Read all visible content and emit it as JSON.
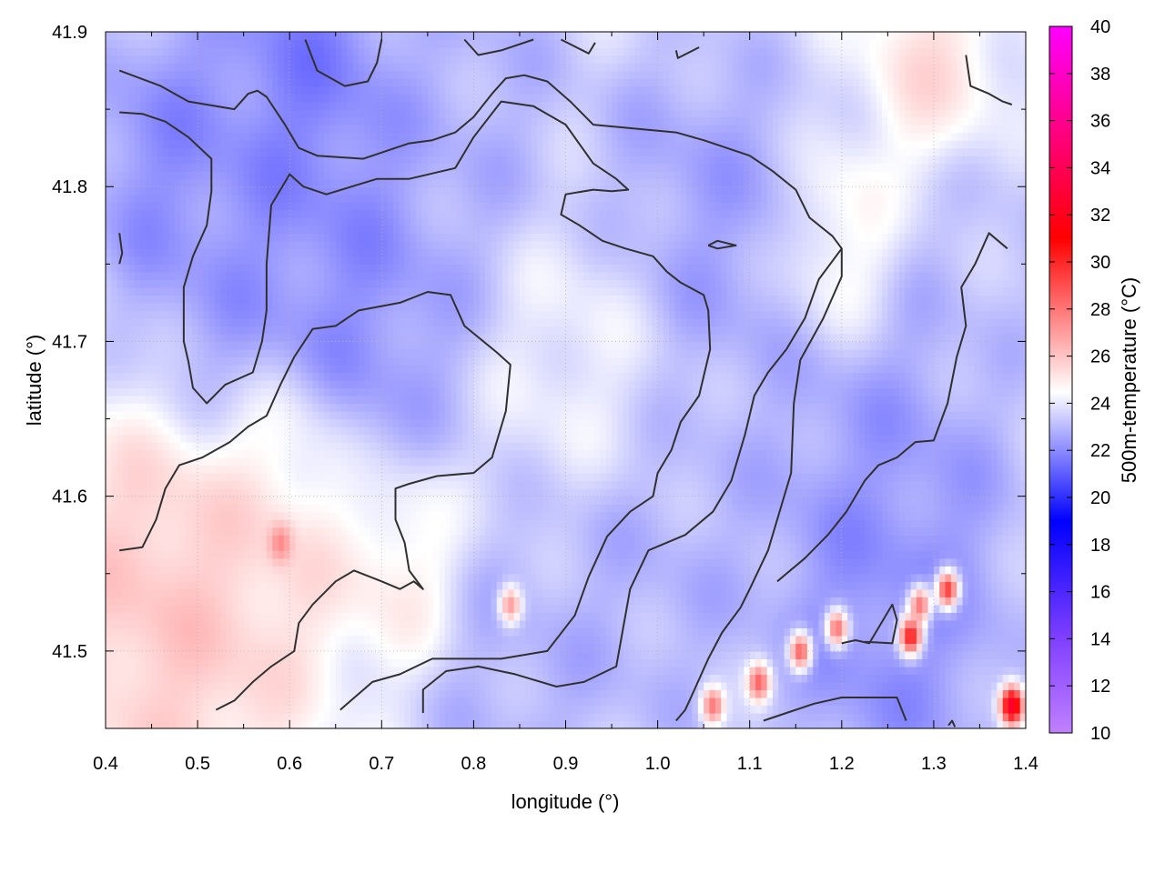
{
  "chart_data": {
    "type": "heatmap",
    "title": "",
    "xlabel": "longitude (°)",
    "ylabel": "latitude (°)",
    "xlim": [
      0.4,
      1.4
    ],
    "ylim": [
      41.45,
      41.9
    ],
    "x_ticks": [
      "0.4",
      "0.5",
      "0.6",
      "0.7",
      "0.8",
      "0.9",
      "1.0",
      "1.1",
      "1.2",
      "1.3",
      "1.4"
    ],
    "y_ticks": [
      "41.5",
      "41.6",
      "41.7",
      "41.8",
      "41.9"
    ],
    "grid": true,
    "colorbar": {
      "label": "500m-temperature (°C)",
      "range": [
        10,
        40
      ],
      "ticks": [
        "10",
        "12",
        "14",
        "16",
        "18",
        "20",
        "22",
        "24",
        "26",
        "28",
        "30",
        "32",
        "34",
        "36",
        "38",
        "40"
      ],
      "colors": [
        {
          "value": 10,
          "color": "#c080ff"
        },
        {
          "value": 14,
          "color": "#8040ff"
        },
        {
          "value": 19,
          "color": "#0000ff"
        },
        {
          "value": 24.5,
          "color": "#ffffff"
        },
        {
          "value": 31,
          "color": "#ff0000"
        },
        {
          "value": 40,
          "color": "#ff00ff"
        }
      ]
    },
    "regions": [
      {
        "lon": 0.62,
        "lat": 41.87,
        "value": 21.0,
        "spread": 0.08
      },
      {
        "lon": 0.47,
        "lat": 41.82,
        "value": 21.5,
        "spread": 0.08
      },
      {
        "lon": 0.67,
        "lat": 41.73,
        "value": 21.5,
        "spread": 0.1
      },
      {
        "lon": 0.55,
        "lat": 41.76,
        "value": 22.0,
        "spread": 0.09
      },
      {
        "lon": 0.8,
        "lat": 41.86,
        "value": 22.5,
        "spread": 0.09
      },
      {
        "lon": 1.05,
        "lat": 41.78,
        "value": 22.0,
        "spread": 0.1
      },
      {
        "lon": 1.25,
        "lat": 41.62,
        "value": 22.0,
        "spread": 0.11
      },
      {
        "lon": 1.25,
        "lat": 41.52,
        "value": 21.5,
        "spread": 0.1
      },
      {
        "lon": 1.0,
        "lat": 41.55,
        "value": 22.5,
        "spread": 0.1
      },
      {
        "lon": 0.85,
        "lat": 41.48,
        "value": 22.5,
        "spread": 0.09
      },
      {
        "lon": 1.36,
        "lat": 41.75,
        "value": 23.0,
        "spread": 0.08
      },
      {
        "lon": 0.45,
        "lat": 41.54,
        "value": 26.5,
        "spread": 0.08
      },
      {
        "lon": 0.58,
        "lat": 41.57,
        "value": 26.0,
        "spread": 0.07
      },
      {
        "lon": 0.5,
        "lat": 41.48,
        "value": 26.0,
        "spread": 0.08
      },
      {
        "lon": 0.72,
        "lat": 41.55,
        "value": 25.5,
        "spread": 0.05
      },
      {
        "lon": 1.2,
        "lat": 41.76,
        "value": 25.5,
        "spread": 0.05
      },
      {
        "lon": 1.3,
        "lat": 41.87,
        "value": 25.8,
        "spread": 0.05
      },
      {
        "lon": 0.93,
        "lat": 41.69,
        "value": 24.5,
        "spread": 0.07
      },
      {
        "lon": 0.6,
        "lat": 41.62,
        "value": 25.0,
        "spread": 0.05
      }
    ],
    "hotspots": [
      {
        "lon": 1.385,
        "lat": 41.465,
        "value": 33.0
      },
      {
        "lon": 1.275,
        "lat": 41.51,
        "value": 30.5
      },
      {
        "lon": 1.315,
        "lat": 41.54,
        "value": 29.5
      },
      {
        "lon": 1.11,
        "lat": 41.48,
        "value": 28.5
      },
      {
        "lon": 1.155,
        "lat": 41.5,
        "value": 28.5
      },
      {
        "lon": 1.285,
        "lat": 41.53,
        "value": 28.0
      },
      {
        "lon": 1.195,
        "lat": 41.515,
        "value": 28.0
      },
      {
        "lon": 1.06,
        "lat": 41.465,
        "value": 28.0
      },
      {
        "lon": 0.59,
        "lat": 41.57,
        "value": 27.5
      },
      {
        "lon": 0.84,
        "lat": 41.53,
        "value": 27.0
      }
    ],
    "contours": [
      [
        [
          0.415,
          41.875
        ],
        [
          0.46,
          41.865
        ],
        [
          0.49,
          41.855
        ],
        [
          0.54,
          41.85
        ],
        [
          0.555,
          41.86
        ],
        [
          0.565,
          41.862
        ],
        [
          0.575,
          41.858
        ],
        [
          0.595,
          41.84
        ],
        [
          0.61,
          41.825
        ],
        [
          0.63,
          41.82
        ],
        [
          0.68,
          41.818
        ],
        [
          0.73,
          41.828
        ],
        [
          0.755,
          41.83
        ],
        [
          0.78,
          41.835
        ],
        [
          0.8,
          41.845
        ],
        [
          0.82,
          41.86
        ],
        [
          0.835,
          41.87
        ],
        [
          0.855,
          41.872
        ],
        [
          0.88,
          41.868
        ],
        [
          0.905,
          41.855
        ],
        [
          0.93,
          41.84
        ],
        [
          1.02,
          41.835
        ],
        [
          1.05,
          41.83
        ],
        [
          1.1,
          41.82
        ],
        [
          1.125,
          41.81
        ],
        [
          1.15,
          41.798
        ],
        [
          1.165,
          41.78
        ],
        [
          1.19,
          41.768
        ],
        [
          1.2,
          41.76
        ],
        [
          1.2,
          41.742
        ],
        [
          1.18,
          41.715
        ],
        [
          1.155,
          41.688
        ],
        [
          1.148,
          41.66
        ],
        [
          1.145,
          41.615
        ],
        [
          1.12,
          41.565
        ],
        [
          1.1,
          41.54
        ],
        [
          1.09,
          41.528
        ],
        [
          1.07,
          41.512
        ],
        [
          1.055,
          41.495
        ],
        [
          1.04,
          41.475
        ],
        [
          1.03,
          41.462
        ],
        [
          1.02,
          41.455
        ]
      ],
      [
        [
          0.415,
          41.848
        ],
        [
          0.44,
          41.847
        ],
        [
          0.465,
          41.842
        ],
        [
          0.49,
          41.832
        ],
        [
          0.515,
          41.818
        ],
        [
          0.515,
          41.797
        ],
        [
          0.51,
          41.775
        ],
        [
          0.495,
          41.755
        ],
        [
          0.485,
          41.735
        ],
        [
          0.485,
          41.7
        ],
        [
          0.49,
          41.687
        ],
        [
          0.495,
          41.67
        ],
        [
          0.51,
          41.66
        ],
        [
          0.53,
          41.672
        ],
        [
          0.56,
          41.68
        ],
        [
          0.57,
          41.7
        ],
        [
          0.575,
          41.72
        ],
        [
          0.575,
          41.75
        ],
        [
          0.58,
          41.788
        ],
        [
          0.6,
          41.808
        ],
        [
          0.615,
          41.8
        ],
        [
          0.64,
          41.795
        ],
        [
          0.695,
          41.805
        ],
        [
          0.73,
          41.805
        ],
        [
          0.78,
          41.812
        ],
        [
          0.8,
          41.832
        ],
        [
          0.83,
          41.855
        ],
        [
          0.865,
          41.852
        ],
        [
          0.9,
          41.84
        ],
        [
          0.93,
          41.815
        ],
        [
          0.955,
          41.805
        ],
        [
          0.968,
          41.798
        ],
        [
          0.95,
          41.797
        ],
        [
          0.93,
          41.798
        ],
        [
          0.9,
          41.795
        ],
        [
          0.895,
          41.782
        ],
        [
          0.915,
          41.775
        ],
        [
          0.94,
          41.765
        ],
        [
          0.965,
          41.76
        ],
        [
          0.995,
          41.755
        ],
        [
          1.01,
          41.745
        ],
        [
          1.025,
          41.738
        ],
        [
          1.05,
          41.73
        ],
        [
          1.055,
          41.72
        ],
        [
          1.057,
          41.695
        ],
        [
          1.045,
          41.665
        ],
        [
          1.025,
          41.648
        ],
        [
          1.015,
          41.63
        ],
        [
          1.0,
          41.615
        ],
        [
          0.995,
          41.6
        ],
        [
          0.97,
          41.59
        ],
        [
          0.945,
          41.574
        ],
        [
          0.925,
          41.548
        ],
        [
          0.91,
          41.523
        ],
        [
          0.88,
          41.5
        ],
        [
          0.83,
          41.495
        ],
        [
          0.755,
          41.495
        ],
        [
          0.72,
          41.485
        ],
        [
          0.69,
          41.48
        ],
        [
          0.655,
          41.462
        ]
      ],
      [
        [
          0.415,
          41.565
        ],
        [
          0.44,
          41.567
        ],
        [
          0.455,
          41.585
        ],
        [
          0.465,
          41.605
        ],
        [
          0.48,
          41.62
        ],
        [
          0.505,
          41.625
        ],
        [
          0.535,
          41.635
        ],
        [
          0.555,
          41.645
        ],
        [
          0.575,
          41.652
        ],
        [
          0.59,
          41.672
        ],
        [
          0.605,
          41.69
        ],
        [
          0.625,
          41.708
        ],
        [
          0.65,
          41.71
        ],
        [
          0.675,
          41.72
        ],
        [
          0.72,
          41.725
        ],
        [
          0.75,
          41.732
        ],
        [
          0.775,
          41.73
        ],
        [
          0.79,
          41.71
        ],
        [
          0.825,
          41.693
        ],
        [
          0.84,
          41.685
        ],
        [
          0.835,
          41.655
        ],
        [
          0.82,
          41.625
        ],
        [
          0.8,
          41.615
        ],
        [
          0.76,
          41.613
        ],
        [
          0.73,
          41.608
        ],
        [
          0.715,
          41.605
        ],
        [
          0.715,
          41.585
        ],
        [
          0.725,
          41.57
        ],
        [
          0.73,
          41.552
        ],
        [
          0.745,
          41.54
        ],
        [
          0.735,
          41.545
        ],
        [
          0.72,
          41.54
        ],
        [
          0.7,
          41.545
        ],
        [
          0.67,
          41.552
        ],
        [
          0.65,
          41.545
        ],
        [
          0.625,
          41.53
        ],
        [
          0.61,
          41.518
        ],
        [
          0.605,
          41.5
        ],
        [
          0.58,
          41.49
        ],
        [
          0.56,
          41.48
        ],
        [
          0.54,
          41.468
        ],
        [
          0.52,
          41.462
        ]
      ],
      [
        [
          0.745,
          41.46
        ],
        [
          0.745,
          41.475
        ],
        [
          0.77,
          41.487
        ],
        [
          0.805,
          41.49
        ],
        [
          0.845,
          41.485
        ],
        [
          0.89,
          41.477
        ],
        [
          0.92,
          41.48
        ],
        [
          0.955,
          41.49
        ],
        [
          0.97,
          41.54
        ],
        [
          0.99,
          41.565
        ],
        [
          1.03,
          41.575
        ],
        [
          1.06,
          41.59
        ],
        [
          1.08,
          41.61
        ],
        [
          1.095,
          41.64
        ],
        [
          1.105,
          41.665
        ],
        [
          1.12,
          41.68
        ],
        [
          1.14,
          41.695
        ],
        [
          1.16,
          41.715
        ],
        [
          1.175,
          41.74
        ],
        [
          1.2,
          41.76
        ]
      ],
      [
        [
          1.115,
          41.455
        ],
        [
          1.14,
          41.46
        ],
        [
          1.17,
          41.466
        ],
        [
          1.2,
          41.47
        ],
        [
          1.26,
          41.47
        ],
        [
          1.27,
          41.455
        ]
      ],
      [
        [
          1.2,
          41.505
        ],
        [
          1.215,
          41.507
        ],
        [
          1.23,
          41.505
        ],
        [
          1.24,
          41.515
        ],
        [
          1.255,
          41.53
        ],
        [
          1.26,
          41.52
        ],
        [
          1.255,
          41.505
        ],
        [
          1.225,
          41.506
        ]
      ],
      [
        [
          1.13,
          41.545
        ],
        [
          1.16,
          41.56
        ],
        [
          1.185,
          41.575
        ],
        [
          1.205,
          41.59
        ],
        [
          1.225,
          41.61
        ],
        [
          1.24,
          41.62
        ],
        [
          1.26,
          41.625
        ],
        [
          1.28,
          41.635
        ],
        [
          1.3,
          41.636
        ],
        [
          1.315,
          41.66
        ],
        [
          1.325,
          41.69
        ],
        [
          1.335,
          41.71
        ],
        [
          1.33,
          41.735
        ],
        [
          1.345,
          41.75
        ],
        [
          1.36,
          41.77
        ],
        [
          1.38,
          41.76
        ]
      ],
      [
        [
          1.335,
          41.885
        ],
        [
          1.34,
          41.865
        ],
        [
          1.36,
          41.86
        ],
        [
          1.375,
          41.855
        ],
        [
          1.385,
          41.853
        ]
      ],
      [
        [
          1.055,
          41.762
        ],
        [
          1.065,
          41.765
        ],
        [
          1.085,
          41.762
        ],
        [
          1.065,
          41.76
        ],
        [
          1.055,
          41.762
        ]
      ],
      [
        [
          0.617,
          41.895
        ],
        [
          0.63,
          41.875
        ],
        [
          0.66,
          41.865
        ],
        [
          0.685,
          41.868
        ],
        [
          0.695,
          41.88
        ],
        [
          0.7,
          41.895
        ]
      ],
      [
        [
          0.79,
          41.895
        ],
        [
          0.805,
          41.885
        ],
        [
          0.83,
          41.888
        ],
        [
          0.865,
          41.895
        ]
      ],
      [
        [
          0.895,
          41.895
        ],
        [
          0.925,
          41.886
        ],
        [
          0.932,
          41.893
        ]
      ],
      [
        [
          1.02,
          41.888
        ],
        [
          1.022,
          41.883
        ],
        [
          1.045,
          41.89
        ]
      ],
      [
        [
          0.415,
          41.77
        ],
        [
          0.418,
          41.757
        ],
        [
          0.415,
          41.75
        ]
      ],
      [
        [
          1.316,
          41.452
        ],
        [
          1.32,
          41.455
        ],
        [
          1.323,
          41.451
        ]
      ]
    ]
  }
}
